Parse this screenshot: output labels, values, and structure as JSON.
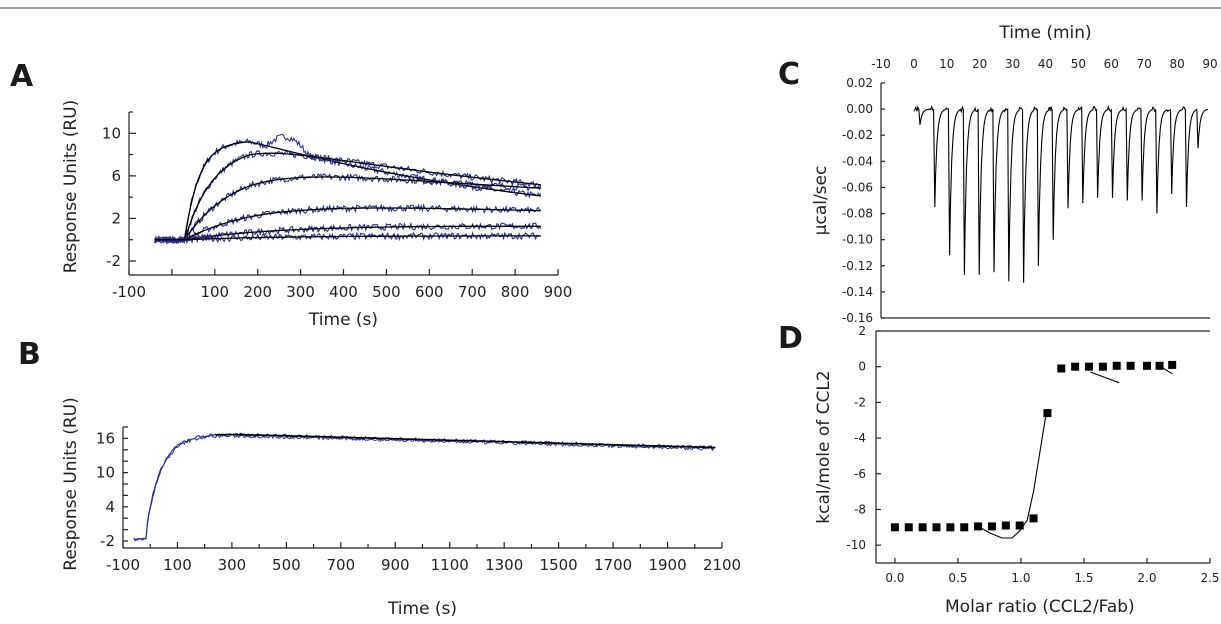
{
  "colors": {
    "raw": "#2b2f8c",
    "fit": "#000000",
    "axis": "#222222"
  },
  "top_rule": true,
  "chart_data": [
    {
      "id": "A",
      "type": "line",
      "panel_label": "A",
      "xlabel": "Time (s)",
      "ylabel": "Response Units (RU)",
      "xlim": [
        -100,
        900
      ],
      "ylim": [
        -2,
        12
      ],
      "xticks": [
        -100,
        0,
        100,
        200,
        300,
        400,
        500,
        600,
        700,
        800,
        900
      ],
      "xtick_labels": [
        "-100",
        "",
        "100",
        "200",
        "300",
        "400",
        "500",
        "600",
        "700",
        "800",
        "900"
      ],
      "yticks": [
        -2,
        2,
        6,
        10
      ],
      "injection_start": 30,
      "series": [
        {
          "kind": "raw+fit",
          "plateau": 9.3,
          "kobs": 0.03,
          "decay": 0.0012
        },
        {
          "kind": "raw+fit",
          "plateau": 8.9,
          "kobs": 0.015,
          "decay": 0.0008
        },
        {
          "kind": "raw+fit",
          "plateau": 6.8,
          "kobs": 0.009,
          "decay": 0.0005
        },
        {
          "kind": "raw+fit",
          "plateau": 3.6,
          "kobs": 0.006,
          "decay": 0.0004
        },
        {
          "kind": "raw+fit",
          "plateau": 1.5,
          "kobs": 0.004,
          "decay": 0.0002
        },
        {
          "kind": "raw+fit",
          "plateau": 0.4,
          "kobs": 0.004,
          "decay": 0.0001
        }
      ],
      "x_end": 860
    },
    {
      "id": "B",
      "type": "line",
      "panel_label": "B",
      "xlabel": "Time (s)",
      "ylabel": "Response Units (RU)",
      "xlim": [
        -100,
        2100
      ],
      "ylim": [
        -2,
        18
      ],
      "xticks": [
        -100,
        100,
        300,
        500,
        700,
        900,
        1100,
        1300,
        1500,
        1700,
        1900,
        2100
      ],
      "yticks": [
        -2,
        4,
        10,
        16
      ],
      "injection_start": -15,
      "plateau": 16.8,
      "kobs": 0.018,
      "peak_time": 240,
      "end_value": 14.4,
      "x_end": 2075
    },
    {
      "id": "C",
      "type": "line",
      "panel_label": "C",
      "xlabel": "Time (min)",
      "ylabel": "µcal/sec",
      "xlim": [
        -10,
        90
      ],
      "ylim": [
        -0.16,
        0.02
      ],
      "xticks": [
        -10,
        0,
        10,
        20,
        30,
        40,
        50,
        60,
        70,
        80,
        90
      ],
      "yticks": [
        0.02,
        0.0,
        -0.02,
        -0.04,
        -0.06,
        -0.08,
        -0.1,
        -0.12,
        -0.14,
        -0.16
      ],
      "ytick_labels": [
        "0.02",
        "0.00",
        "-0.02",
        "-0.04",
        "-0.06",
        "-0.08",
        "-0.10",
        "-0.12",
        "-0.14",
        "-0.16"
      ],
      "injections": [
        {
          "t": 1.5,
          "depth": -0.012
        },
        {
          "t": 6.0,
          "depth": -0.075
        },
        {
          "t": 10.5,
          "depth": -0.112
        },
        {
          "t": 15.0,
          "depth": -0.127
        },
        {
          "t": 19.5,
          "depth": -0.127
        },
        {
          "t": 24.0,
          "depth": -0.125
        },
        {
          "t": 28.5,
          "depth": -0.132
        },
        {
          "t": 33.0,
          "depth": -0.133
        },
        {
          "t": 37.5,
          "depth": -0.12
        },
        {
          "t": 42.0,
          "depth": -0.1
        },
        {
          "t": 46.5,
          "depth": -0.076
        },
        {
          "t": 51.0,
          "depth": -0.072
        },
        {
          "t": 55.5,
          "depth": -0.068
        },
        {
          "t": 60.0,
          "depth": -0.068
        },
        {
          "t": 64.5,
          "depth": -0.07
        },
        {
          "t": 69.0,
          "depth": -0.07
        },
        {
          "t": 73.5,
          "depth": -0.08
        },
        {
          "t": 78.0,
          "depth": -0.065
        },
        {
          "t": 82.5,
          "depth": -0.075
        },
        {
          "t": 86.0,
          "depth": -0.03
        }
      ],
      "baseline_range": [
        0,
        87
      ]
    },
    {
      "id": "D",
      "type": "scatter",
      "panel_label": "D",
      "xlabel": "Molar ratio (CCL2/Fab)",
      "ylabel": "kcal/mole of CCL2",
      "xlim": [
        -0.15,
        2.5
      ],
      "ylim": [
        -11,
        2
      ],
      "xticks": [
        0.0,
        0.5,
        1.0,
        1.5,
        2.0,
        2.5
      ],
      "xtick_labels": [
        "0.0",
        "0.5",
        "1.0",
        "1.5",
        "2.0",
        "2.5"
      ],
      "yticks": [
        2,
        0,
        -2,
        -4,
        -6,
        -8,
        -10
      ],
      "points": {
        "x": [
          0.0,
          0.11,
          0.22,
          0.33,
          0.44,
          0.55,
          0.66,
          0.77,
          0.88,
          0.99,
          1.1,
          1.21,
          1.32,
          1.43,
          1.54,
          1.65,
          1.76,
          1.87,
          2.0,
          2.1,
          2.2
        ],
        "y": [
          -9.0,
          -9.0,
          -9.0,
          -9.0,
          -9.0,
          -9.0,
          -8.95,
          -8.95,
          -8.9,
          -8.9,
          -8.5,
          -2.6,
          -0.1,
          0.0,
          0.0,
          0.0,
          0.05,
          0.05,
          0.05,
          0.05,
          0.1
        ]
      },
      "fit_line": {
        "x": [
          0.66,
          0.75,
          0.85,
          0.93,
          0.99,
          1.05,
          1.1,
          1.2
        ],
        "y": [
          -8.95,
          -9.3,
          -9.6,
          -9.6,
          -9.2,
          -8.6,
          -7.0,
          -2.6
        ]
      },
      "fit_segments": [
        {
          "x": [
            1.55,
            1.78
          ],
          "y": [
            -0.3,
            -0.9
          ]
        },
        {
          "x": [
            2.1,
            2.2
          ],
          "y": [
            0.05,
            -0.4
          ]
        }
      ]
    }
  ]
}
